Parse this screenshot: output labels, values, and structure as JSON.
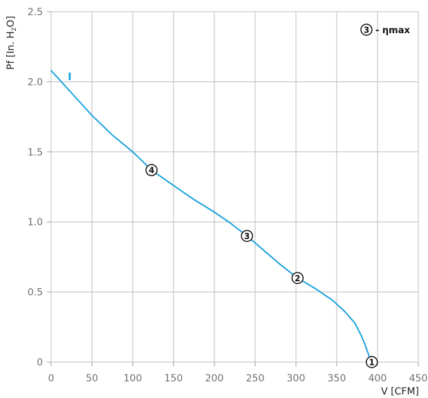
{
  "chart_data": {
    "type": "line",
    "xlabel": "V [CFM]",
    "ylabel_parts": {
      "main": "Pf [In. H",
      "sub": "2",
      "end": "O]"
    },
    "xlim": [
      0,
      450
    ],
    "ylim": [
      0,
      2.5
    ],
    "grid": true,
    "x_ticks": [
      0,
      50,
      100,
      150,
      200,
      250,
      300,
      350,
      400,
      450
    ],
    "y_ticks": [
      {
        "value": 0,
        "label": "0"
      },
      {
        "value": 0.5,
        "label": "0.5"
      },
      {
        "value": 1.0,
        "label": "1.0"
      },
      {
        "value": 1.5,
        "label": "1.5"
      },
      {
        "value": 2.0,
        "label": "2.0"
      },
      {
        "value": 2.5,
        "label": "2.5"
      }
    ],
    "series": [
      {
        "name": "I",
        "color": "#1aa3dc",
        "x": [
          0,
          25,
          50,
          75,
          100,
          123,
          150,
          175,
          200,
          220,
          240,
          260,
          280,
          302,
          325,
          345,
          360,
          372,
          380,
          385,
          388,
          391,
          393
        ],
        "y": [
          2.08,
          1.92,
          1.76,
          1.62,
          1.5,
          1.37,
          1.26,
          1.16,
          1.07,
          0.99,
          0.9,
          0.8,
          0.7,
          0.6,
          0.52,
          0.44,
          0.36,
          0.28,
          0.19,
          0.12,
          0.07,
          0.02,
          0
        ]
      }
    ],
    "operating_points": [
      {
        "label": "1",
        "x": 393,
        "y": 0
      },
      {
        "label": "2",
        "x": 302,
        "y": 0.6
      },
      {
        "label": "3",
        "x": 240,
        "y": 0.9
      },
      {
        "label": "4",
        "x": 123,
        "y": 1.37
      }
    ],
    "legend": {
      "marker": "3",
      "text": "- ηmax",
      "placement": "top-right"
    }
  }
}
